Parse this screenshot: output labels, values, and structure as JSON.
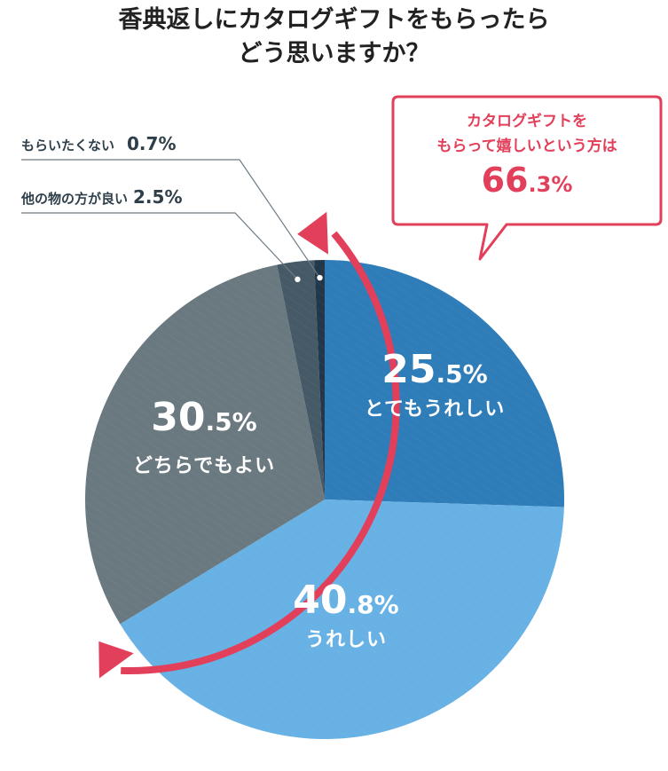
{
  "title_line1": "香典返しにカタログギフトをもらったら",
  "title_line2": "どう思いますか？",
  "callout": {
    "line1": "カタログギフトを",
    "line2": "もらって嬉しいという方は",
    "value_main": "66",
    "value_small": ".3%"
  },
  "labels": [
    {
      "main": "25",
      "small": ".5%",
      "name": "とてもうれしい"
    },
    {
      "main": "40",
      "small": ".8%",
      "name": "うれしい"
    },
    {
      "main": "30",
      "small": ".5%",
      "name": "どちらでもよい"
    }
  ],
  "side_labels": [
    {
      "name": "もらいたくない",
      "value": "0.7%"
    },
    {
      "name": "他の物の方が良い",
      "value": "2.5%"
    }
  ],
  "colors": {
    "very_happy": "#2e7cb8",
    "happy": "#67b1e4",
    "either": "#6a7880",
    "other": "#455a66",
    "not_want": "#22374a",
    "accent": "#e2405a"
  },
  "chart_data": {
    "type": "pie",
    "title": "香典返しにカタログギフトをもらったら どう思いますか？",
    "categories": [
      "とてもうれしい",
      "うれしい",
      "どちらでもよい",
      "他の物の方が良い",
      "もらいたくない"
    ],
    "values": [
      25.5,
      40.8,
      30.5,
      2.5,
      0.7
    ],
    "annotation": "カタログギフトをもらって嬉しいという方は 66.3%"
  }
}
